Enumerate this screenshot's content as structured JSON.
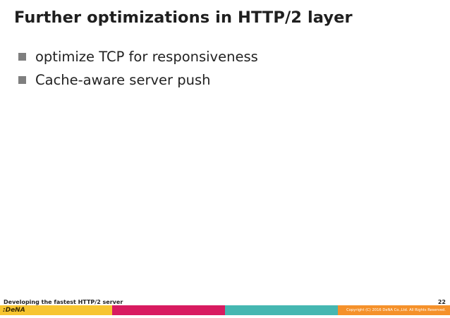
{
  "slide": {
    "title": "Further optimizations in HTTP/2 layer",
    "bullets": [
      "optimize TCP for responsiveness",
      "Cache-aware server push"
    ]
  },
  "footer": {
    "presentation_title": "Developing the fastest HTTP/2 server",
    "page_number": "22",
    "logo_text": ":DeNA",
    "copyright": "Copyright (C) 2016 DeNA Co.,Ltd. All Rights Reserved.",
    "bar_colors": [
      "#f7c531",
      "#d81b60",
      "#45b7b1",
      "#f5912a"
    ]
  }
}
